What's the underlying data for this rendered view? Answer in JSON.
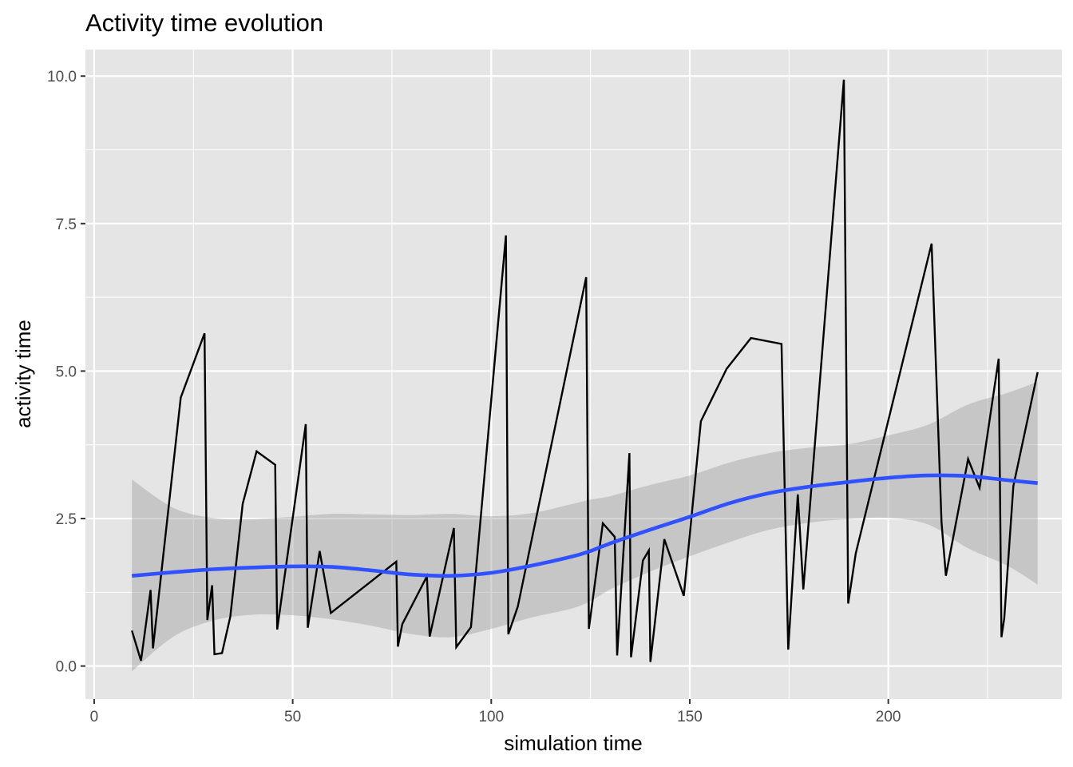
{
  "chart_data": {
    "type": "line",
    "title": "Activity time evolution",
    "xlabel": "simulation time",
    "ylabel": "activity time",
    "xlim": [
      -2.2,
      243.7
    ],
    "ylim": [
      -0.56,
      10.45
    ],
    "x_ticks": [
      0,
      50,
      100,
      150,
      200
    ],
    "x_tick_labels": [
      "0",
      "50",
      "100",
      "150",
      "200"
    ],
    "y_ticks": [
      0,
      2.5,
      5,
      7.5,
      10
    ],
    "y_tick_labels": [
      "0.0",
      "2.5",
      "5.0",
      "7.5",
      "10.0"
    ],
    "grid": true,
    "legend": "none",
    "colors": {
      "panel": "#e5e5e5",
      "grid": "#ffffff",
      "line": "#000000",
      "smooth": "#3051ff",
      "ribbon": "#999999"
    },
    "series": [
      {
        "type": "line",
        "x": [
          9.5,
          11.8,
          14.2,
          14.8,
          21.8,
          27.8,
          28.5,
          29.7,
          30.3,
          32.2,
          34.3,
          37.4,
          40.9,
          45.6,
          46.1,
          53.3,
          53.8,
          56.8,
          59.6,
          76.1,
          76.5,
          77.6,
          83.8,
          84.5,
          90.6,
          91.2,
          94.9,
          103.7,
          104.3,
          106.7,
          123.9,
          124.6,
          128.1,
          131.1,
          131.7,
          134.8,
          135.2,
          138.2,
          139.7,
          140.1,
          143.6,
          148.5,
          152.8,
          159.3,
          165.4,
          173.1,
          174.8,
          177.2,
          178.6,
          188.8,
          189.9,
          191.8,
          210.9,
          213.4,
          214.5,
          220.1,
          223.0,
          227.8,
          228.5,
          229.2,
          231.5,
          237.6
        ],
        "y": [
          0.6,
          0.09,
          1.29,
          0.3,
          4.55,
          5.64,
          0.78,
          1.37,
          0.2,
          0.22,
          0.84,
          2.75,
          3.64,
          3.41,
          0.62,
          4.1,
          0.65,
          1.95,
          0.9,
          1.77,
          0.33,
          0.71,
          1.52,
          0.5,
          2.34,
          0.32,
          0.66,
          7.3,
          0.54,
          1.01,
          6.59,
          0.63,
          2.42,
          2.19,
          0.18,
          3.61,
          0.15,
          1.79,
          1.96,
          0.07,
          2.15,
          1.19,
          4.15,
          5.04,
          5.56,
          5.46,
          0.28,
          2.91,
          1.3,
          9.94,
          1.06,
          1.91,
          7.16,
          2.44,
          1.53,
          3.51,
          3.02,
          5.21,
          0.49,
          0.81,
          3.05,
          4.98
        ]
      },
      {
        "type": "smooth",
        "x": [
          9.5,
          20,
          30,
          40,
          50,
          60,
          70,
          80,
          90,
          100,
          110,
          120,
          125,
          130,
          140,
          150,
          160,
          170,
          180,
          190,
          200,
          210,
          220,
          230,
          237.6
        ],
        "y": [
          1.53,
          1.59,
          1.64,
          1.67,
          1.69,
          1.68,
          1.62,
          1.55,
          1.53,
          1.58,
          1.7,
          1.85,
          1.95,
          2.08,
          2.31,
          2.53,
          2.76,
          2.93,
          3.04,
          3.12,
          3.19,
          3.23,
          3.22,
          3.15,
          3.1
        ],
        "ymin": [
          -0.09,
          0.5,
          0.77,
          0.87,
          0.86,
          0.79,
          0.68,
          0.54,
          0.49,
          0.63,
          0.82,
          0.97,
          1.1,
          1.3,
          1.6,
          1.86,
          2.1,
          2.31,
          2.43,
          2.49,
          2.51,
          2.4,
          2.0,
          1.7,
          1.38
        ],
        "ymax": [
          3.16,
          2.68,
          2.51,
          2.49,
          2.53,
          2.58,
          2.57,
          2.56,
          2.58,
          2.54,
          2.59,
          2.74,
          2.82,
          2.88,
          3.07,
          3.23,
          3.45,
          3.61,
          3.7,
          3.76,
          3.91,
          4.09,
          4.43,
          4.63,
          4.82
        ]
      }
    ]
  }
}
